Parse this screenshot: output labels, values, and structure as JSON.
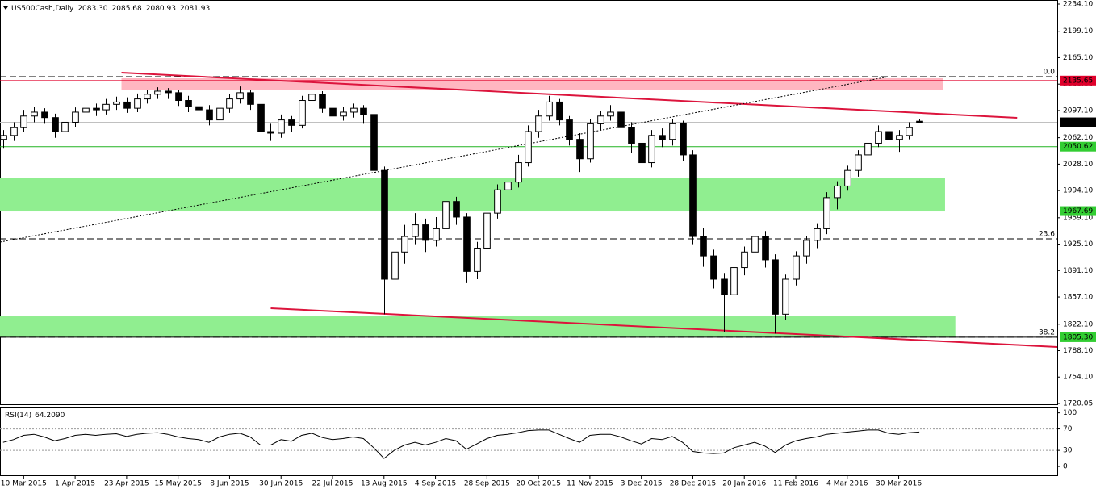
{
  "chart_data": {
    "type": "candlestick",
    "title": "US500Cash,Daily",
    "title_values": [
      {
        "value": 2083.3,
        "label": "2083.30"
      },
      {
        "value": 2085.68,
        "label": "2085.68"
      },
      {
        "value": 2080.93,
        "label": "2080.93"
      },
      {
        "value": 2081.93,
        "label": "2081.93"
      }
    ],
    "up_color": "#ffffff",
    "down_color": "#000000",
    "wick_color": "#000000",
    "open": [
      2060,
      2065,
      2075,
      2090,
      2095,
      2088,
      2070,
      2082,
      2095,
      2100,
      2098,
      2105,
      2108,
      2100,
      2112,
      2118,
      2122,
      2120,
      2110,
      2102,
      2098,
      2085,
      2100,
      2112,
      2120,
      2105,
      2070,
      2068,
      2085,
      2078,
      2110,
      2118,
      2100,
      2090,
      2095,
      2100,
      2092,
      2020,
      1880,
      1915,
      1935,
      1950,
      1930,
      1945,
      1980,
      1960,
      1890,
      1920,
      1965,
      1995,
      2005,
      2030,
      2070,
      2090,
      2108,
      2085,
      2060,
      2035,
      2080,
      2090,
      2095,
      2075,
      2055,
      2030,
      2065,
      2060,
      2080,
      2040,
      1935,
      1910,
      1880,
      1860,
      1895,
      1915,
      1935,
      1905,
      1835,
      1880,
      1910,
      1930,
      1945,
      1985,
      2000,
      2020,
      2040,
      2055,
      2070,
      2060,
      2065,
      2083.3
    ],
    "high": [
      2072,
      2082,
      2098,
      2102,
      2100,
      2093,
      2088,
      2101,
      2108,
      2106,
      2112,
      2115,
      2114,
      2119,
      2124,
      2127,
      2126,
      2124,
      2116,
      2108,
      2104,
      2106,
      2118,
      2128,
      2124,
      2110,
      2080,
      2092,
      2090,
      2116,
      2126,
      2122,
      2106,
      2102,
      2106,
      2104,
      2096,
      2025,
      1935,
      1950,
      1965,
      1958,
      1960,
      1990,
      1986,
      1965,
      1928,
      1972,
      2002,
      2015,
      2040,
      2078,
      2098,
      2116,
      2112,
      2090,
      2068,
      2086,
      2096,
      2104,
      2100,
      2082,
      2062,
      2072,
      2074,
      2086,
      2084,
      2046,
      1946,
      1918,
      1888,
      1902,
      1922,
      1945,
      1942,
      1912,
      1886,
      1916,
      1936,
      1952,
      1992,
      2006,
      2026,
      2046,
      2062,
      2078,
      2076,
      2072,
      2082,
      2085.68
    ],
    "low": [
      2048,
      2058,
      2070,
      2082,
      2080,
      2062,
      2064,
      2076,
      2089,
      2090,
      2092,
      2098,
      2094,
      2095,
      2106,
      2112,
      2112,
      2103,
      2095,
      2090,
      2078,
      2080,
      2094,
      2106,
      2098,
      2062,
      2058,
      2062,
      2070,
      2074,
      2104,
      2094,
      2082,
      2084,
      2088,
      2080,
      2010,
      1835,
      1862,
      1900,
      1925,
      1915,
      1922,
      1938,
      1950,
      1875,
      1880,
      1912,
      1958,
      1988,
      1998,
      2025,
      2062,
      2084,
      2078,
      2052,
      2018,
      2030,
      2072,
      2084,
      2062,
      2042,
      2020,
      2024,
      2050,
      2052,
      2032,
      1925,
      1896,
      1868,
      1812,
      1852,
      1885,
      1905,
      1895,
      1810,
      1828,
      1872,
      1900,
      1920,
      1938,
      1970,
      1994,
      2012,
      2034,
      2050,
      2050,
      2044,
      2060,
      2080.93
    ],
    "close": [
      2065,
      2075,
      2090,
      2095,
      2088,
      2070,
      2082,
      2095,
      2100,
      2098,
      2105,
      2108,
      2100,
      2112,
      2118,
      2122,
      2120,
      2110,
      2102,
      2098,
      2085,
      2100,
      2112,
      2120,
      2105,
      2070,
      2068,
      2085,
      2078,
      2110,
      2118,
      2100,
      2090,
      2095,
      2100,
      2092,
      2020,
      1880,
      1915,
      1935,
      1950,
      1930,
      1945,
      1980,
      1960,
      1890,
      1920,
      1965,
      1995,
      2005,
      2030,
      2070,
      2090,
      2108,
      2085,
      2060,
      2035,
      2080,
      2090,
      2095,
      2075,
      2055,
      2030,
      2065,
      2060,
      2080,
      2040,
      1935,
      1910,
      1880,
      1860,
      1895,
      1915,
      1935,
      1905,
      1835,
      1880,
      1910,
      1930,
      1945,
      1985,
      2000,
      2020,
      2040,
      2055,
      2070,
      2060,
      2065,
      2075,
      2081.93
    ],
    "xlim": [
      -0.3,
      102.4
    ],
    "xticks": [
      {
        "value": 2,
        "label": "10 Mar 2015"
      },
      {
        "value": 7,
        "label": "1 Apr 2015"
      },
      {
        "value": 12,
        "label": "23 Apr 2015"
      },
      {
        "value": 17,
        "label": "15 May 2015"
      },
      {
        "value": 22,
        "label": "8 Jun 2015"
      },
      {
        "value": 27,
        "label": "30 Jun 2015"
      },
      {
        "value": 32,
        "label": "22 Jul 2015"
      },
      {
        "value": 37,
        "label": "13 Aug 2015"
      },
      {
        "value": 42,
        "label": "4 Sep 2015"
      },
      {
        "value": 47,
        "label": "28 Sep 2015"
      },
      {
        "value": 52,
        "label": "20 Oct 2015"
      },
      {
        "value": 57,
        "label": "11 Nov 2015"
      },
      {
        "value": 62,
        "label": "3 Dec 2015"
      },
      {
        "value": 67,
        "label": "28 Dec 2015"
      },
      {
        "value": 72,
        "label": "20 Jan 2016"
      },
      {
        "value": 77,
        "label": "11 Feb 2016"
      },
      {
        "value": 82,
        "label": "4 Mar 2016"
      },
      {
        "value": 87,
        "label": "30 Mar 2016"
      }
    ],
    "ylim": [
      1718,
      2239.3
    ],
    "yticks": [
      {
        "value": 2234.1,
        "label": "2234.10"
      },
      {
        "value": 2199.1,
        "label": "2199.10"
      },
      {
        "value": 2165.1,
        "label": "2165.10"
      },
      {
        "value": 2131.1,
        "label": "2131.10"
      },
      {
        "value": 2097.1,
        "label": "2097.10"
      },
      {
        "value": 2062.1,
        "label": "2062.10"
      },
      {
        "value": 2028.1,
        "label": "2028.10"
      },
      {
        "value": 1994.1,
        "label": "1994.10"
      },
      {
        "value": 1959.1,
        "label": "1959.10"
      },
      {
        "value": 1925.1,
        "label": "1925.10"
      },
      {
        "value": 1891.1,
        "label": "1891.10"
      },
      {
        "value": 1857.1,
        "label": "1857.10"
      },
      {
        "value": 1822.1,
        "label": "1822.10"
      },
      {
        "value": 1788.1,
        "label": "1788.10"
      },
      {
        "value": 1754.1,
        "label": "1754.10"
      },
      {
        "value": 1720.05,
        "label": "1720.05"
      }
    ],
    "zones": [
      {
        "low": 2123.0,
        "high": 2138.6,
        "start": 11.5,
        "end": 91.3,
        "color": "#ffb6c1"
      },
      {
        "low": 1967.2,
        "high": 2010.8,
        "start": -0.3,
        "end": 91.5,
        "color": "#90ee90"
      },
      {
        "low": 1805.3,
        "high": 1832.2,
        "start": -0.3,
        "end": 92.5,
        "color": "#90ee90"
      }
    ],
    "levels": [
      {
        "value": 2135.65,
        "label": "2135.65",
        "color": "#e0002b",
        "label_bg": "#e0002b",
        "label_fg": "#ffffff"
      },
      {
        "value": 2081.93,
        "label": "2081.93",
        "color": "#c0c0c0",
        "label_bg": "#000000",
        "label_fg": "#ffffff"
      },
      {
        "value": 2050.62,
        "label": "2050.62",
        "color": "#22b422",
        "label_bg": "#32cd32",
        "label_fg": "#000000"
      },
      {
        "value": 1967.69,
        "label": "1967.69",
        "color": "#22b422",
        "label_bg": "#32cd32",
        "label_fg": "#000000"
      },
      {
        "value": 1805.3,
        "label": "1805.30",
        "color": "#000000",
        "label_bg": "#32cd32",
        "label_fg": "#000000"
      }
    ],
    "fib_levels": [
      {
        "value": 2140.7,
        "name": "0.0"
      },
      {
        "value": 1931.9,
        "name": "23.6"
      },
      {
        "value": 1805.3,
        "name": "38.2"
      }
    ],
    "trendlines": [
      {
        "x": [
          11.5,
          98.5
        ],
        "y": [
          2145.8,
          2087.7
        ],
        "color": "#dc143c",
        "style": "solid"
      },
      {
        "x": [
          26,
          102.4
        ],
        "y": [
          1842.6,
          1792.8
        ],
        "color": "#dc143c",
        "style": "solid"
      },
      {
        "x": [
          -0.3,
          86
        ],
        "y": [
          1927.8,
          2140.6
        ],
        "color": "#000000",
        "style": "dotted"
      }
    ],
    "rsi": {
      "type": "line",
      "title": "RSI(14)",
      "current": {
        "value": 64.209,
        "label": "64.2090"
      },
      "color": "#000000",
      "values": [
        45,
        50,
        58,
        60,
        55,
        48,
        52,
        58,
        60,
        58,
        60,
        61,
        56,
        60,
        62,
        63,
        60,
        55,
        52,
        50,
        45,
        55,
        60,
        62,
        55,
        40,
        40,
        50,
        47,
        58,
        62,
        54,
        50,
        52,
        55,
        52,
        35,
        15,
        30,
        40,
        45,
        40,
        45,
        52,
        48,
        32,
        42,
        52,
        58,
        60,
        63,
        67,
        68,
        68,
        60,
        52,
        45,
        58,
        60,
        60,
        55,
        48,
        42,
        52,
        50,
        56,
        45,
        28,
        25,
        24,
        25,
        35,
        40,
        45,
        38,
        26,
        40,
        48,
        52,
        55,
        60,
        62,
        64,
        66,
        68,
        68,
        62,
        60,
        63,
        64.209
      ],
      "ylim": [
        -18,
        110
      ],
      "yticks": [
        0,
        30,
        70,
        100
      ],
      "levels": [
        30,
        70
      ]
    }
  }
}
